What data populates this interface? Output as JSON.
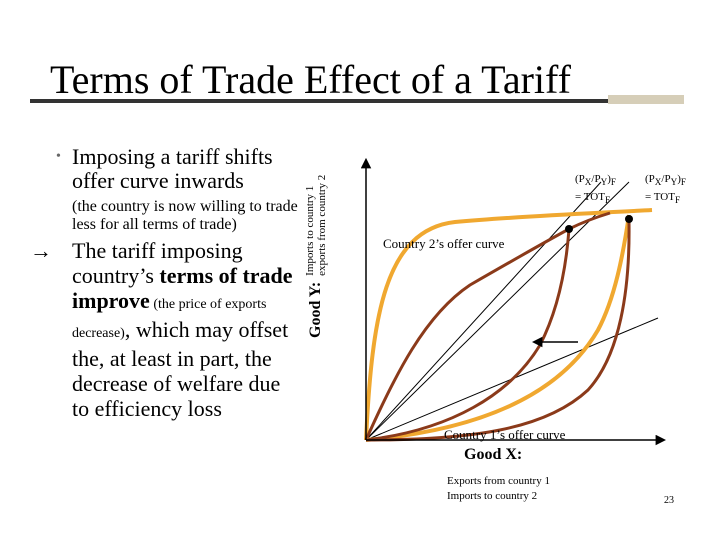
{
  "title": "Terms of Trade Effect of a Tariff",
  "bullets": {
    "b1_marker": "•",
    "b1": "Imposing a tariff shifts offer curve inwards",
    "b1_sub": "(the country is now willing to trade less for all terms of trade)",
    "b2_arrow": "→",
    "b2_lead": "The tariff imposing country’s ",
    "b2_bold": "terms of trade improve",
    "b2_small": " (the price of exports decrease)",
    "b2_tail": ", which may offset the, at least in part, the decrease of welfare due to efficiency loss"
  },
  "diagram": {
    "y_axis_title": "Good Y:",
    "y_axis_line1": "Imports to country 1",
    "y_axis_line2": "exports from country 2",
    "x_axis_title": "Good X:",
    "x_axis_line1": "Exports from country 1",
    "x_axis_line2": "Imports to country 2",
    "tot_free_line1_pre": "(P",
    "tot_free_line1_sub1": "X",
    "tot_free_line1_mid": "/P",
    "tot_free_line1_sub2": "Y",
    "tot_free_line1_post": ")",
    "tot_free_line1_sub3": "F",
    "tot_free_line2_pre": "= TOT",
    "tot_free_line2_sub": "F",
    "tot_tariff_line1_pre": "(P",
    "tot_tariff_line1_sub1": "X",
    "tot_tariff_line1_mid": "/P",
    "tot_tariff_line1_sub2": "Y",
    "tot_tariff_line1_post": ")",
    "tot_tariff_line1_sub3": "F",
    "tot_tariff_line2_pre": "= TOT",
    "tot_tariff_line2_sub": "F",
    "country2_label": "Country 2’s offer curve",
    "country1_label": "Country 1’s offer curve",
    "colors": {
      "original_curves": "#f0a830",
      "tariff_curves": "#8b3a1a",
      "axes": "#000000",
      "rays": "#000000"
    }
  },
  "page_number": "23"
}
